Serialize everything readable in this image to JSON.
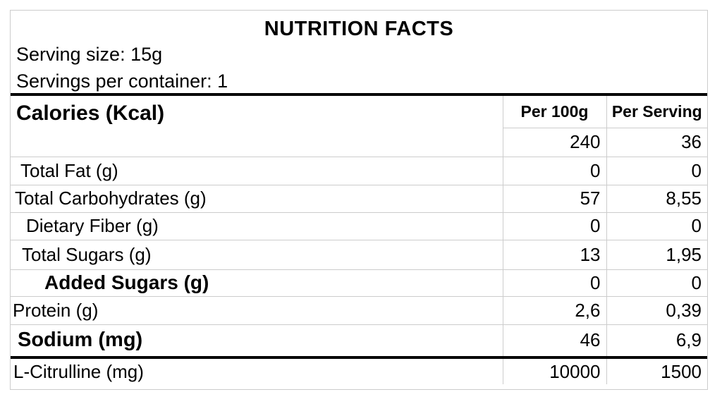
{
  "title": "NUTRITION FACTS",
  "serving_size_line": "Serving size: 15g",
  "servings_per_container_line": "Servings per container: 1",
  "table": {
    "columns": {
      "col1": "Per 100g",
      "col2": "Per Serving"
    },
    "calories": {
      "label": "Calories (Kcal)",
      "per_100g": "240",
      "per_serving": "36"
    },
    "rows": [
      {
        "label": "Total Fat (g)",
        "per_100g": "0",
        "per_serving": "0"
      },
      {
        "label": "Total Carbohydrates (g)",
        "per_100g": "57",
        "per_serving": "8,55"
      },
      {
        "label": "Dietary Fiber (g)",
        "per_100g": "0",
        "per_serving": "0"
      },
      {
        "label": "Total Sugars (g)",
        "per_100g": "13",
        "per_serving": "1,95"
      },
      {
        "label": "Added Sugars (g)",
        "per_100g": "0",
        "per_serving": "0"
      },
      {
        "label": "Protein (g)",
        "per_100g": "2,6",
        "per_serving": "0,39"
      },
      {
        "label": "Sodium (mg)",
        "per_100g": "46",
        "per_serving": "6,9"
      }
    ],
    "footer_row": {
      "label": "L-Citrulline (mg)",
      "per_100g": "10000",
      "per_serving": "1500"
    }
  },
  "colors": {
    "background": "#ffffff",
    "text": "#000000",
    "border_light": "#cccccc",
    "border_heavy": "#000000"
  }
}
